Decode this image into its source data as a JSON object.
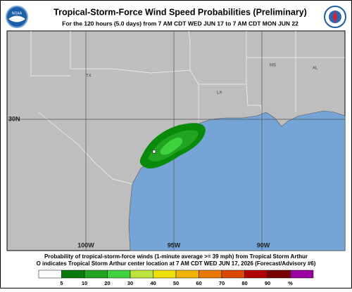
{
  "header": {
    "title": "Tropical-Storm-Force Wind Speed Probabilities (Preliminary)",
    "subtitle": "For the 120 hours (5.0 days) from 7 AM CDT WED JUN 17 to 7 AM CDT MON JUN 22"
  },
  "map": {
    "state_labels": [
      "TX",
      "LA",
      "MS",
      "AL"
    ],
    "lat_labels": [
      "30N"
    ],
    "lon_labels": [
      "100W",
      "95W",
      "90W"
    ]
  },
  "caption": [
    "Probability of tropical-storm-force winds (1-minute average >= 39 mph) from Tropical Storm Arthur",
    "O indicates Tropical Storm Arthur center location at 7 AM CDT WED JUN 17, 2026 (Forecast/Advisory #6)"
  ],
  "legend": {
    "colors": [
      "#ffffff",
      "#0a7a0a",
      "#22a322",
      "#3fd23f",
      "#bde43c",
      "#f0e000",
      "#f0b400",
      "#e87800",
      "#d84800",
      "#b00000",
      "#780000",
      "#9a00a0"
    ],
    "labels": [
      "5",
      "10",
      "20",
      "30",
      "40",
      "50",
      "60",
      "70",
      "80",
      "90",
      "%"
    ]
  }
}
